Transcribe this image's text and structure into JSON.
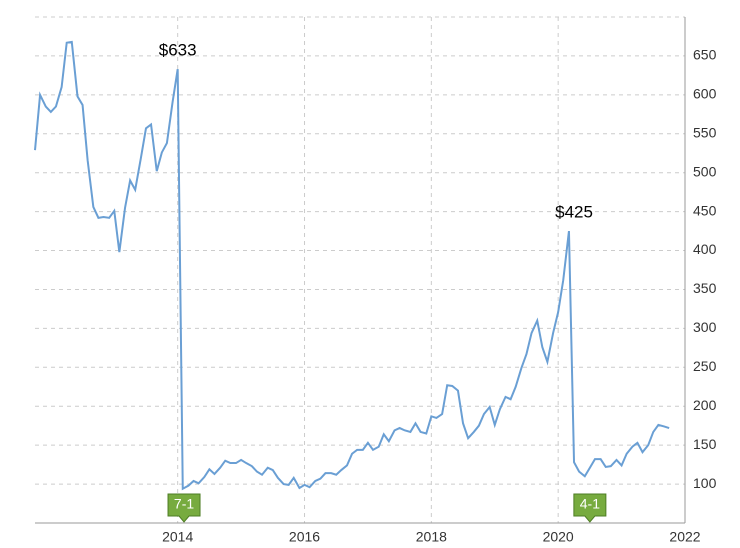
{
  "chart_data": {
    "type": "line",
    "x": [
      2011.75,
      2011.83,
      2011.92,
      2012,
      2012.08,
      2012.17,
      2012.25,
      2012.33,
      2012.42,
      2012.5,
      2012.58,
      2012.67,
      2012.75,
      2012.83,
      2012.92,
      2013,
      2013.08,
      2013.17,
      2013.25,
      2013.33,
      2013.42,
      2013.5,
      2013.58,
      2013.67,
      2013.75,
      2013.83,
      2013.92,
      2014,
      2014.08,
      2014.17,
      2014.25,
      2014.33,
      2014.42,
      2014.5,
      2014.58,
      2014.67,
      2014.75,
      2014.83,
      2014.92,
      2015,
      2015.08,
      2015.17,
      2015.25,
      2015.33,
      2015.42,
      2015.5,
      2015.58,
      2015.67,
      2015.75,
      2015.83,
      2015.92,
      2016,
      2016.08,
      2016.17,
      2016.25,
      2016.33,
      2016.42,
      2016.5,
      2016.58,
      2016.67,
      2016.75,
      2016.83,
      2016.92,
      2017,
      2017.08,
      2017.17,
      2017.25,
      2017.33,
      2017.42,
      2017.5,
      2017.58,
      2017.67,
      2017.75,
      2017.83,
      2017.92,
      2018,
      2018.08,
      2018.17,
      2018.25,
      2018.33,
      2018.42,
      2018.5,
      2018.58,
      2018.67,
      2018.75,
      2018.83,
      2018.92,
      2019,
      2019.08,
      2019.17,
      2019.25,
      2019.33,
      2019.42,
      2019.5,
      2019.58,
      2019.67,
      2019.75,
      2019.83,
      2019.92,
      2020,
      2020.08,
      2020.17,
      2020.25,
      2020.33,
      2020.42,
      2020.5,
      2020.58,
      2020.67,
      2020.75,
      2020.83,
      2020.92,
      2021,
      2021.08,
      2021.17,
      2021.25,
      2021.33,
      2021.42,
      2021.5,
      2021.58,
      2021.67,
      2021.75
    ],
    "series": [
      {
        "color": "#6a9fd4",
        "values": [
          529,
          600,
          585,
          578,
          585,
          610,
          667,
          668,
          598,
          587,
          516,
          456,
          442,
          443,
          442,
          451,
          398,
          455,
          490,
          478,
          519,
          557,
          562,
          502,
          526,
          538,
          591,
          633,
          94,
          98,
          104,
          101,
          109,
          119,
          113,
          121,
          130,
          127,
          127,
          131,
          127,
          123,
          116,
          112,
          121,
          118,
          108,
          100,
          99,
          108,
          95,
          99,
          96,
          104,
          107,
          114,
          114,
          112,
          118,
          124,
          139,
          144,
          144,
          153,
          144,
          148,
          164,
          155,
          169,
          172,
          169,
          167,
          178,
          167,
          165,
          187,
          185,
          190,
          227,
          226,
          220,
          178,
          159,
          167,
          175,
          190,
          199,
          176,
          196,
          212,
          209,
          225,
          249,
          267,
          294,
          310,
          276,
          257,
          294,
          321,
          362,
          425,
          128,
          116,
          110,
          121,
          132,
          132,
          122,
          123,
          131,
          124,
          139,
          148,
          153,
          141,
          150,
          167,
          176,
          174,
          172
        ]
      }
    ],
    "xlim": [
      2011.75,
      2022
    ],
    "xticks": [
      2014,
      2016,
      2018,
      2020,
      2022
    ],
    "ylim": [
      50,
      700
    ],
    "yticks": [
      100,
      150,
      200,
      250,
      300,
      350,
      400,
      450,
      500,
      550,
      600,
      650
    ],
    "grid": true,
    "annotations": [
      {
        "label": "$633",
        "x": 2014,
        "y": 633
      },
      {
        "label": "$425",
        "x": 2020.25,
        "y": 425
      }
    ],
    "splits": [
      {
        "label": "7-1",
        "x": 2014.1
      },
      {
        "label": "4-1",
        "x": 2020.5
      }
    ]
  }
}
